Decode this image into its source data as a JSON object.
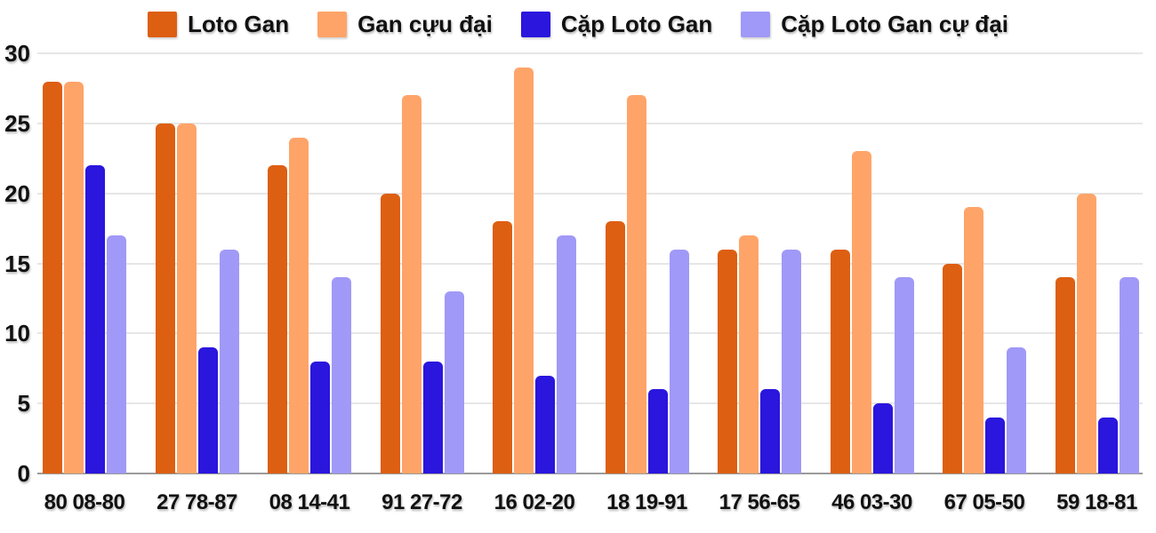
{
  "chart_data": {
    "type": "bar",
    "title": "",
    "xlabel": "",
    "ylabel": "",
    "categories": [
      "80 08-80",
      "27 78-87",
      "08 14-41",
      "91 27-72",
      "16 02-20",
      "18 19-91",
      "17 56-65",
      "46 03-30",
      "67 05-50",
      "59 18-81"
    ],
    "series": [
      {
        "name": "Loto Gan",
        "color": "#dd5f12",
        "values": [
          28,
          25,
          22,
          20,
          18,
          18,
          16,
          16,
          15,
          14
        ]
      },
      {
        "name": "Gan cựu đại",
        "color": "#ffa468",
        "values": [
          28,
          25,
          24,
          27,
          29,
          27,
          17,
          23,
          19,
          20
        ]
      },
      {
        "name": "Cặp Loto Gan",
        "color": "#2a16dd",
        "values": [
          22,
          9,
          8,
          8,
          7,
          6,
          6,
          5,
          4,
          4
        ]
      },
      {
        "name": "Cặp Loto Gan cự đại",
        "color": "#a099f7",
        "values": [
          17,
          16,
          14,
          13,
          17,
          16,
          16,
          14,
          9,
          14
        ]
      }
    ],
    "ylim": [
      0,
      30
    ],
    "yticks": [
      0,
      5,
      10,
      15,
      20,
      25,
      30
    ],
    "grid": true,
    "legend_position": "top",
    "colors": {
      "grid": "#e6e6e6",
      "axis_line": "#9b9b9b",
      "label": "#111111",
      "background": "#ffffff"
    }
  }
}
